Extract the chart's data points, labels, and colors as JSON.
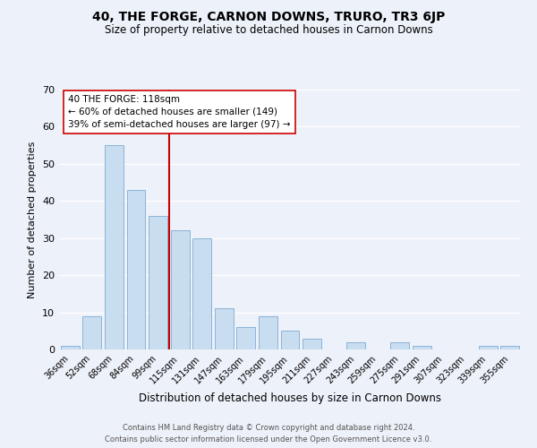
{
  "title": "40, THE FORGE, CARNON DOWNS, TRURO, TR3 6JP",
  "subtitle": "Size of property relative to detached houses in Carnon Downs",
  "xlabel": "Distribution of detached houses by size in Carnon Downs",
  "ylabel": "Number of detached properties",
  "bar_labels": [
    "36sqm",
    "52sqm",
    "68sqm",
    "84sqm",
    "99sqm",
    "115sqm",
    "131sqm",
    "147sqm",
    "163sqm",
    "179sqm",
    "195sqm",
    "211sqm",
    "227sqm",
    "243sqm",
    "259sqm",
    "275sqm",
    "291sqm",
    "307sqm",
    "323sqm",
    "339sqm",
    "355sqm"
  ],
  "bar_values": [
    1,
    9,
    55,
    43,
    36,
    32,
    30,
    11,
    6,
    9,
    5,
    3,
    0,
    2,
    0,
    2,
    1,
    0,
    0,
    1,
    1
  ],
  "bar_color": "#c9ddf0",
  "bar_edge_color": "#8ab4d8",
  "vline_index": 5,
  "vline_color": "#cc0000",
  "ylim": [
    0,
    70
  ],
  "yticks": [
    0,
    10,
    20,
    30,
    40,
    50,
    60,
    70
  ],
  "annotation_text": "40 THE FORGE: 118sqm\n← 60% of detached houses are smaller (149)\n39% of semi-detached houses are larger (97) →",
  "annotation_box_color": "#ffffff",
  "annotation_box_edge": "#cc0000",
  "footer_line1": "Contains HM Land Registry data © Crown copyright and database right 2024.",
  "footer_line2": "Contains public sector information licensed under the Open Government Licence v3.0.",
  "background_color": "#edf1f9",
  "grid_color": "#ffffff",
  "title_fontsize": 10,
  "subtitle_fontsize": 8.5,
  "ylabel_fontsize": 8,
  "xlabel_fontsize": 8.5,
  "tick_fontsize": 7,
  "annotation_fontsize": 7.5,
  "footer_fontsize": 6
}
